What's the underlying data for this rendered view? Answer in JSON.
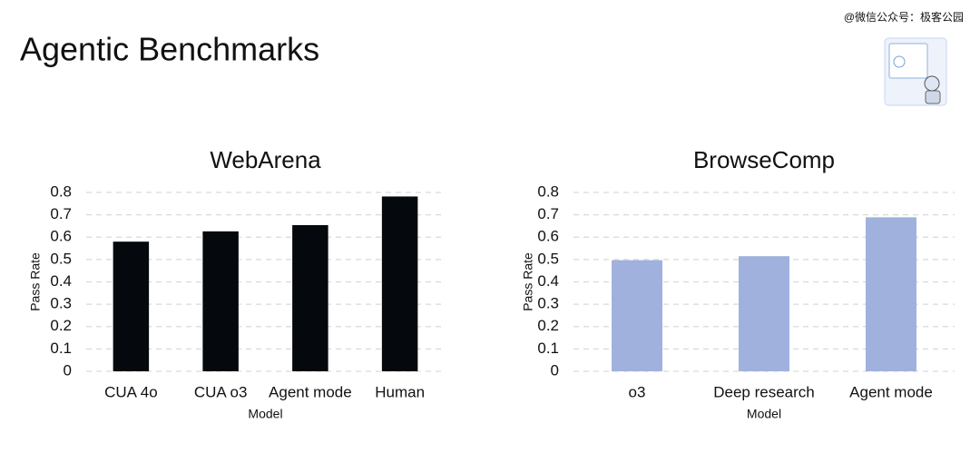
{
  "title": "Agentic Benchmarks",
  "watermark": "@微信公众号：极客公园",
  "chart_data": [
    {
      "type": "bar",
      "title": "WebArena",
      "x_label": "Model",
      "y_label": "Pass Rate",
      "categories": [
        "CUA 4o",
        "CUA o3",
        "Agent mode",
        "Human"
      ],
      "values": [
        0.58,
        0.626,
        0.654,
        0.782
      ],
      "color": "#05090d",
      "ylim": [
        0,
        0.8
      ],
      "yticks": [
        0,
        0.1,
        0.2,
        0.3,
        0.4,
        0.5,
        0.6,
        0.7,
        0.8
      ],
      "grid": true
    },
    {
      "type": "bar",
      "title": "BrowseComp",
      "x_label": "Model",
      "y_label": "Pass Rate",
      "categories": [
        "o3",
        "Deep research",
        "Agent mode"
      ],
      "values": [
        0.497,
        0.515,
        0.689
      ],
      "color": "#9fb1dc",
      "ylim": [
        0,
        0.8
      ],
      "yticks": [
        0,
        0.1,
        0.2,
        0.3,
        0.4,
        0.5,
        0.6,
        0.7,
        0.8
      ],
      "grid": true
    }
  ]
}
